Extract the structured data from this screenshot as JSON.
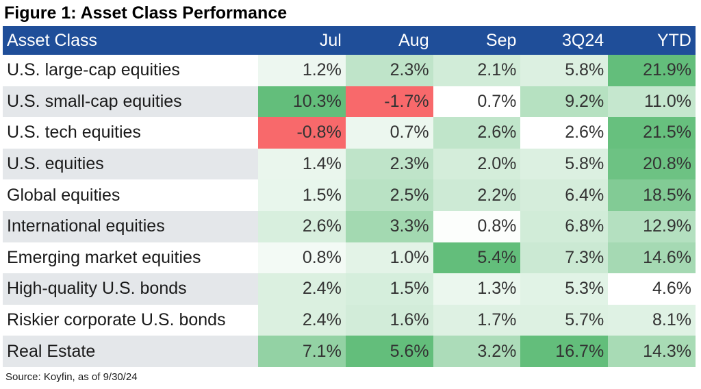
{
  "title": "Figure 1: Asset Class Performance",
  "source": "Source: Koyfin, as of 9/30/24",
  "colors": {
    "header_bg": "#1f4e99",
    "positive_max": "#63be7b",
    "negative": "#f8696b",
    "neutral": "#ffffff"
  },
  "chart_data": {
    "type": "table",
    "columns": [
      "Asset Class",
      "Jul",
      "Aug",
      "Sep",
      "3Q24",
      "YTD"
    ],
    "rows": [
      {
        "name": "U.S. large-cap equities",
        "values": [
          "1.2%",
          "2.3%",
          "2.1%",
          "5.8%",
          "21.9%"
        ]
      },
      {
        "name": "U.S. small-cap equities",
        "values": [
          "10.3%",
          "-1.7%",
          "0.7%",
          "9.2%",
          "11.0%"
        ]
      },
      {
        "name": "U.S. tech equities",
        "values": [
          "-0.8%",
          "0.7%",
          "2.6%",
          "2.6%",
          "21.5%"
        ]
      },
      {
        "name": "U.S. equities",
        "values": [
          "1.4%",
          "2.3%",
          "2.0%",
          "5.8%",
          "20.8%"
        ]
      },
      {
        "name": "Global equities",
        "values": [
          "1.5%",
          "2.5%",
          "2.2%",
          "6.4%",
          "18.5%"
        ]
      },
      {
        "name": "International equities",
        "values": [
          "2.6%",
          "3.3%",
          "0.8%",
          "6.8%",
          "12.9%"
        ]
      },
      {
        "name": "Emerging market equities",
        "values": [
          "0.8%",
          "1.0%",
          "5.4%",
          "7.3%",
          "14.6%"
        ]
      },
      {
        "name": "High-quality U.S. bonds",
        "values": [
          "2.4%",
          "1.5%",
          "1.3%",
          "5.3%",
          "4.6%"
        ]
      },
      {
        "name": "Riskier corporate U.S. bonds",
        "values": [
          "2.4%",
          "1.6%",
          "1.7%",
          "5.7%",
          "8.1%"
        ]
      },
      {
        "name": "Real Estate",
        "values": [
          "7.1%",
          "5.6%",
          "3.2%",
          "16.7%",
          "14.3%"
        ]
      }
    ]
  }
}
